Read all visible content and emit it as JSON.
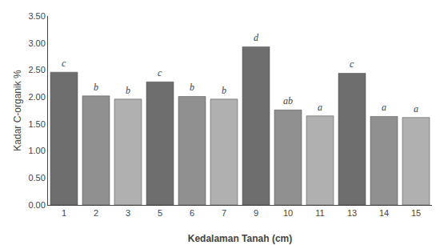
{
  "chart_data": {
    "type": "bar",
    "xlabel": "Kedalaman Tanah (cm)",
    "ylabel": "Kadar C-organik %",
    "categories": [
      "1",
      "2",
      "3",
      "5",
      "6",
      "7",
      "9",
      "10",
      "11",
      "13",
      "14",
      "15"
    ],
    "values": [
      2.46,
      2.02,
      1.96,
      2.28,
      2.01,
      1.96,
      2.93,
      1.76,
      1.65,
      2.44,
      1.64,
      1.62
    ],
    "colors": [
      "#6e6e6e",
      "#909090",
      "#b0b0b0",
      "#6e6e6e",
      "#909090",
      "#b0b0b0",
      "#6e6e6e",
      "#909090",
      "#b0b0b0",
      "#6e6e6e",
      "#909090",
      "#b0b0b0"
    ],
    "annotations": [
      {
        "x": 0,
        "text": "c"
      },
      {
        "x": 1,
        "text": "b"
      },
      {
        "x": 2,
        "text": "b"
      },
      {
        "x": 3,
        "text": "c"
      },
      {
        "x": 4,
        "text": "b"
      },
      {
        "x": 5,
        "text": "b"
      },
      {
        "x": 6,
        "text": "d"
      },
      {
        "x": 7,
        "text": "ab"
      },
      {
        "x": 8,
        "text": "a"
      },
      {
        "x": 9,
        "text": "c"
      },
      {
        "x": 10,
        "text": "a"
      },
      {
        "x": 11,
        "text": "a"
      }
    ],
    "ylim": [
      0,
      3.5
    ],
    "yticks": [
      {
        "value": 0,
        "label": "0.00"
      },
      {
        "value": 0.5,
        "label": "0.50"
      },
      {
        "value": 1,
        "label": "1.00"
      },
      {
        "value": 1.5,
        "label": "1.50"
      },
      {
        "value": 2,
        "label": "2.00"
      },
      {
        "value": 2.5,
        "label": "2.50"
      },
      {
        "value": 3,
        "label": "3.00"
      },
      {
        "value": 3.5,
        "label": "3.50"
      }
    ],
    "grid": false
  }
}
